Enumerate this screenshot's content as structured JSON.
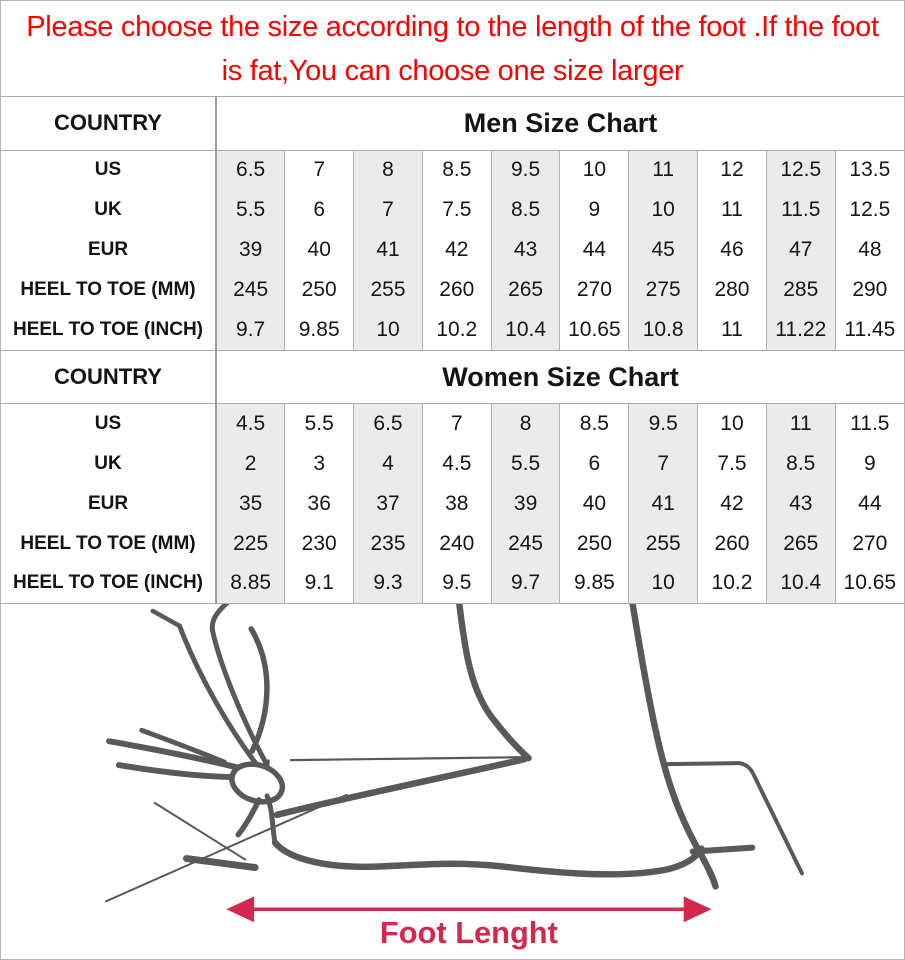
{
  "notice": {
    "line1": "Please choose the size according to the length of the foot .If the foot",
    "line2": "is fat,You can choose one size larger",
    "color": "#fe0000"
  },
  "tables": [
    {
      "corner_label": "COUNTRY",
      "title": "Men Size Chart",
      "rows": [
        {
          "label": "US",
          "values": [
            "6.5",
            "7",
            "8",
            "8.5",
            "9.5",
            "10",
            "11",
            "12",
            "12.5",
            "13.5"
          ]
        },
        {
          "label": "UK",
          "values": [
            "5.5",
            "6",
            "7",
            "7.5",
            "8.5",
            "9",
            "10",
            "11",
            "11.5",
            "12.5"
          ]
        },
        {
          "label": "EUR",
          "values": [
            "39",
            "40",
            "41",
            "42",
            "43",
            "44",
            "45",
            "46",
            "47",
            "48"
          ]
        },
        {
          "label": "HEEL TO TOE (MM)",
          "values": [
            "245",
            "250",
            "255",
            "260",
            "265",
            "270",
            "275",
            "280",
            "285",
            "290"
          ]
        },
        {
          "label": "HEEL TO TOE (INCH)",
          "values": [
            "9.7",
            "9.85",
            "10",
            "10.2",
            "10.4",
            "10.65",
            "10.8",
            "11",
            "11.22",
            "11.45"
          ]
        }
      ]
    },
    {
      "corner_label": "COUNTRY",
      "title": "Women Size Chart",
      "rows": [
        {
          "label": "US",
          "values": [
            "4.5",
            "5.5",
            "6.5",
            "7",
            "8",
            "8.5",
            "9.5",
            "10",
            "11",
            "11.5"
          ]
        },
        {
          "label": "UK",
          "values": [
            "2",
            "3",
            "4",
            "4.5",
            "5.5",
            "6",
            "7",
            "7.5",
            "8.5",
            "9"
          ]
        },
        {
          "label": "EUR",
          "values": [
            "35",
            "36",
            "37",
            "38",
            "39",
            "40",
            "41",
            "42",
            "43",
            "44"
          ]
        },
        {
          "label": "HEEL TO TOE (MM)",
          "values": [
            "225",
            "230",
            "235",
            "240",
            "245",
            "250",
            "255",
            "260",
            "265",
            "270"
          ]
        },
        {
          "label": "HEEL TO TOE (INCH)",
          "values": [
            "8.85",
            "9.1",
            "9.3",
            "9.5",
            "9.7",
            "9.85",
            "10",
            "10.2",
            "10.4",
            "10.65"
          ]
        }
      ]
    }
  ],
  "diagram": {
    "label": "Foot Lenght",
    "arrow_color": "#d4294e",
    "sketch_color": "#58595b"
  },
  "colors": {
    "shaded_cell": "#ebebeb",
    "grid_line": "#ababab",
    "label_divider": "#9c9c9c"
  }
}
